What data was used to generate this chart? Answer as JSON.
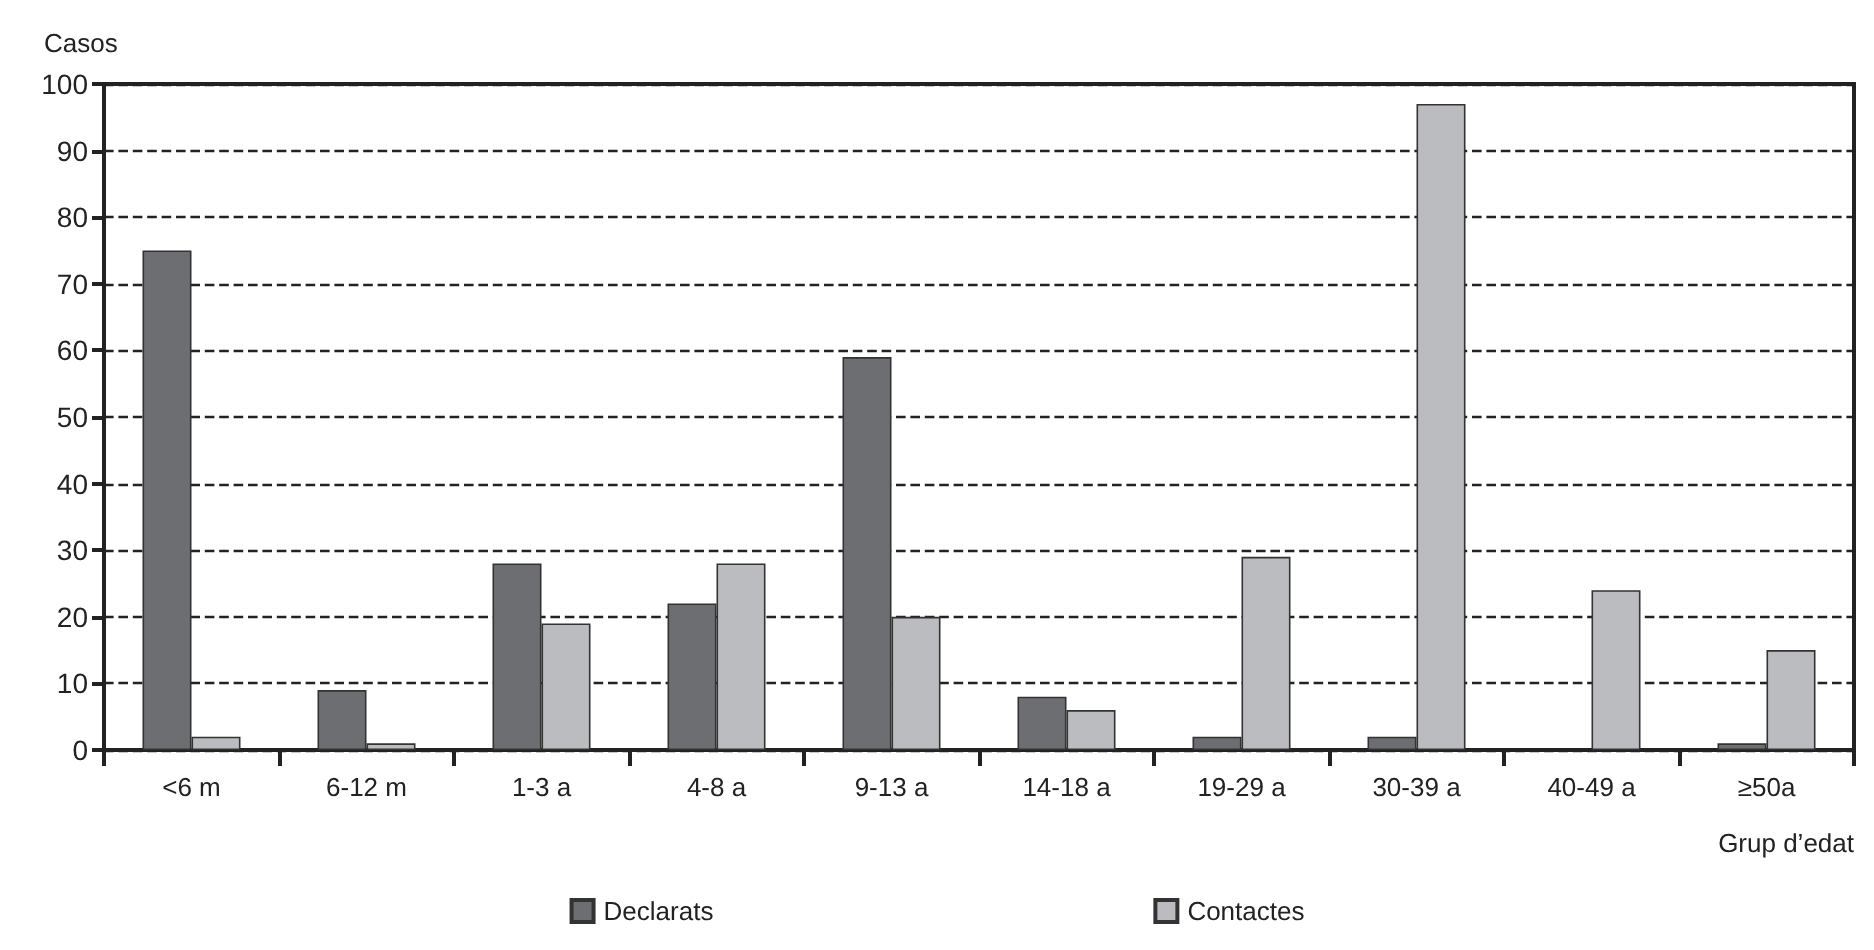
{
  "chart_data": {
    "type": "bar",
    "xlabel": "Grup d’edat",
    "ylabel": "Casos",
    "categories": [
      "<6 m",
      "6-12 m",
      "1-3 a",
      "4-8 a",
      "9-13 a",
      "14-18 a",
      "19-29 a",
      "30-39 a",
      "40-49 a",
      "≥50a"
    ],
    "series": [
      {
        "name": "Declarats",
        "color": "#6d6e72",
        "values": [
          75,
          9,
          28,
          22,
          59,
          8,
          2,
          2,
          0,
          1
        ]
      },
      {
        "name": "Contactes",
        "color": "#bbbcc0",
        "values": [
          2,
          1,
          19,
          28,
          20,
          6,
          29,
          97,
          24,
          15
        ]
      }
    ],
    "ylim": [
      0,
      100
    ],
    "yticks": [
      0,
      10,
      20,
      30,
      40,
      50,
      60,
      70,
      80,
      90,
      100
    ],
    "grid": "y",
    "legend": "bottom"
  }
}
